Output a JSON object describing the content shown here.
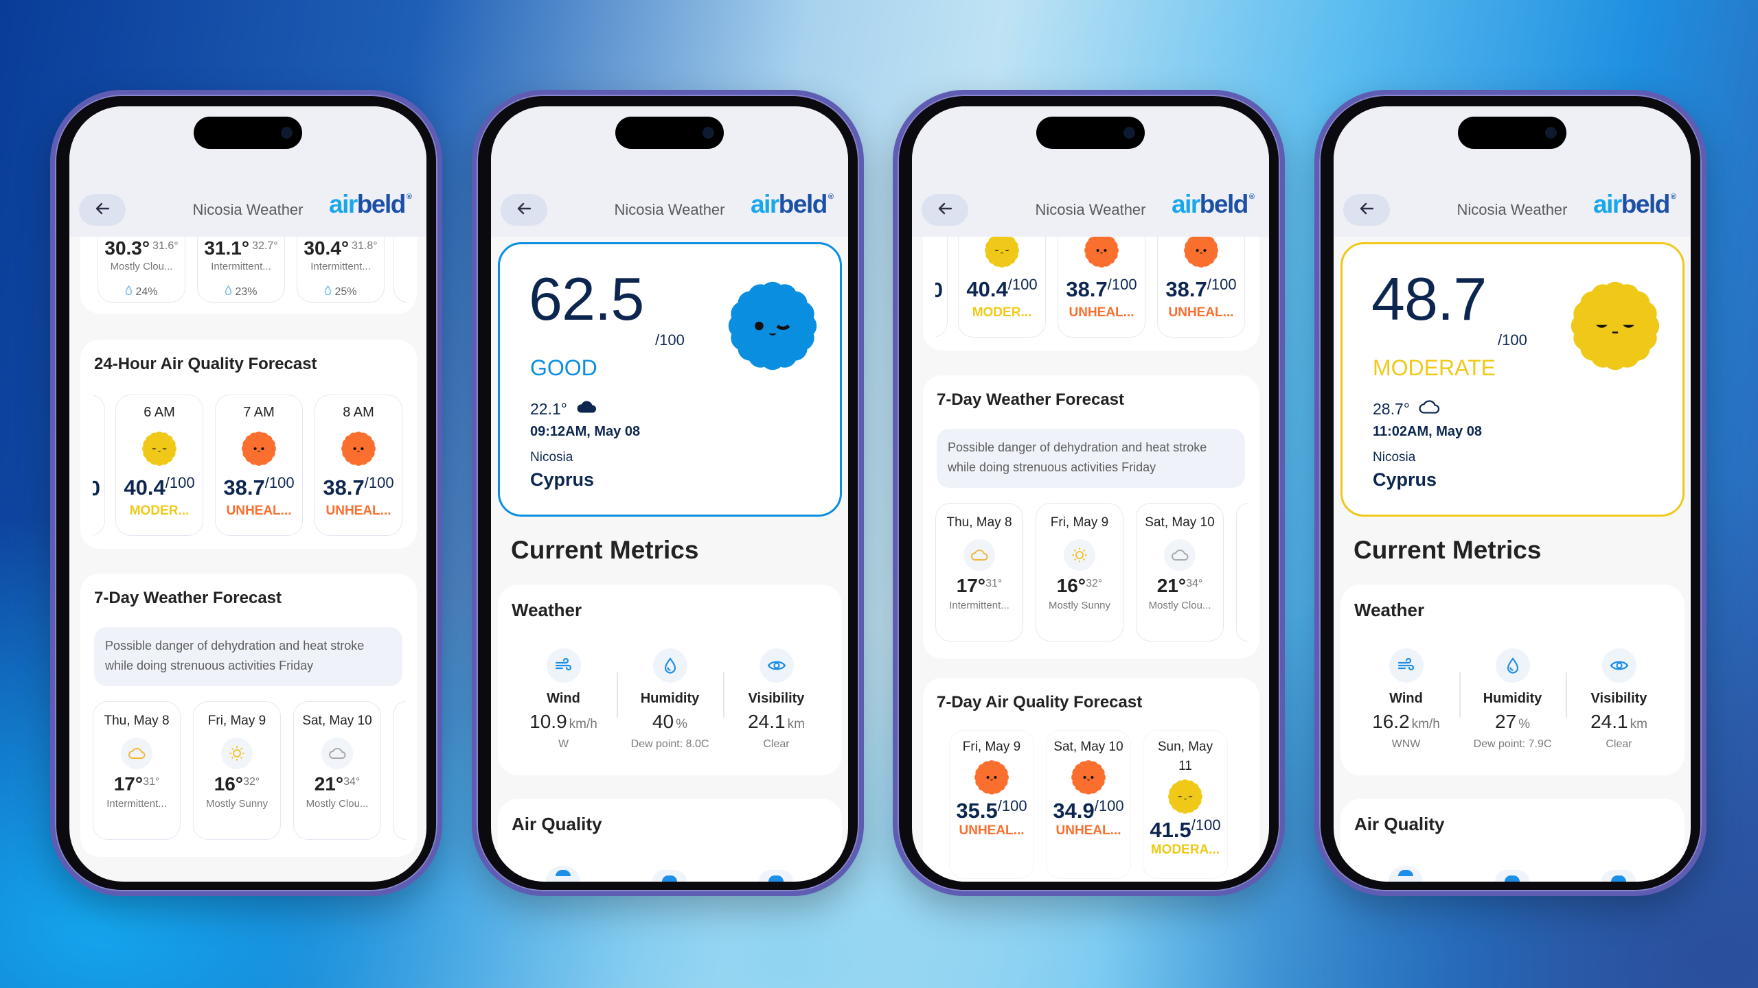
{
  "header": {
    "title": "Nicosia Weather",
    "logo_air": "air",
    "logo_beld": "beld",
    "logo_mark": "®"
  },
  "colors": {
    "good": "#0a8fe0",
    "moderate": "#f0c918",
    "unhealthy": "#fb6f2e",
    "navy": "#0d2650",
    "precip": "#7cc0ee"
  },
  "home": {
    "hourly_weather": [
      {
        "temp": "30.3°",
        "feels": "31.6°",
        "condition": "Mostly Clou...",
        "precip": "24%"
      },
      {
        "temp": "31.1°",
        "feels": "32.7°",
        "condition": "Intermittent...",
        "precip": "23%"
      },
      {
        "temp": "30.4°",
        "feels": "31.8°",
        "condition": "Intermittent...",
        "precip": "25%"
      }
    ],
    "aq_24h": {
      "title": "24-Hour Air Quality Forecast",
      "partial_value": "0",
      "items": [
        {
          "time": "6 AM",
          "value": "40.4",
          "max": "/100",
          "label": "MODER...",
          "level": "moderate"
        },
        {
          "time": "7 AM",
          "value": "38.7",
          "max": "/100",
          "label": "UNHEAL...",
          "level": "unhealthy"
        },
        {
          "time": "8 AM",
          "value": "38.7",
          "max": "/100",
          "label": "UNHEAL...",
          "level": "unhealthy"
        }
      ]
    },
    "weather_7d": {
      "title": "7-Day Weather Forecast",
      "note": "Possible danger of dehydration and heat stroke while doing strenuous activities Friday",
      "items": [
        {
          "date": "Thu, May 8",
          "icon": "cloud",
          "icon_color": "#f4b63f",
          "low": "17°",
          "high": "31°",
          "condition": "Intermittent..."
        },
        {
          "date": "Fri, May 9",
          "icon": "sun",
          "icon_color": "#f4c430",
          "low": "16°",
          "high": "32°",
          "condition": "Mostly Sunny"
        },
        {
          "date": "Sat, May 10",
          "icon": "cloud",
          "icon_color": "#a9a9a9",
          "low": "21°",
          "high": "34°",
          "condition": "Mostly Clou..."
        }
      ]
    },
    "aq_7d": {
      "title": "7-Day Air Quality Forecast",
      "items": [
        {
          "date": "Fri, May 9",
          "value": "35.5",
          "max": "/100",
          "label": "UNHEAL...",
          "level": "unhealthy"
        },
        {
          "date": "Sat, May 10",
          "value": "34.9",
          "max": "/100",
          "label": "UNHEAL...",
          "level": "unhealthy"
        },
        {
          "date": "Sun, May 11",
          "value": "41.5",
          "max": "/100",
          "label": "MODERA...",
          "level": "moderate"
        }
      ]
    }
  },
  "details": [
    {
      "score": "62.5",
      "max": "/100",
      "level_label": "GOOD",
      "level": "good",
      "temperature": "22.1°",
      "sky_icon": "cloud-filled",
      "time": "09:12AM, May 08",
      "city": "Nicosia",
      "country": "Cyprus",
      "metrics_title": "Current Metrics",
      "weather_title": "Weather",
      "air_quality_title": "Air Quality",
      "metrics": [
        {
          "label": "Wind",
          "value": "10.9",
          "unit": "km/h",
          "sub": "W",
          "icon": "wind"
        },
        {
          "label": "Humidity",
          "value": "40",
          "unit": "%",
          "sub": "Dew point: 8.0C",
          "icon": "drop"
        },
        {
          "label": "Visibility",
          "value": "24.1",
          "unit": "km",
          "sub": "Clear",
          "icon": "eye"
        }
      ]
    },
    {
      "score": "48.7",
      "max": "/100",
      "level_label": "MODERATE",
      "level": "moderate",
      "temperature": "28.7°",
      "sky_icon": "cloud-outline",
      "time": "11:02AM, May 08",
      "city": "Nicosia",
      "country": "Cyprus",
      "metrics_title": "Current Metrics",
      "weather_title": "Weather",
      "air_quality_title": "Air Quality",
      "metrics": [
        {
          "label": "Wind",
          "value": "16.2",
          "unit": "km/h",
          "sub": "WNW",
          "icon": "wind"
        },
        {
          "label": "Humidity",
          "value": "27",
          "unit": "%",
          "sub": "Dew point: 7.9C",
          "icon": "drop"
        },
        {
          "label": "Visibility",
          "value": "24.1",
          "unit": "km",
          "sub": "Clear",
          "icon": "eye"
        }
      ]
    }
  ]
}
